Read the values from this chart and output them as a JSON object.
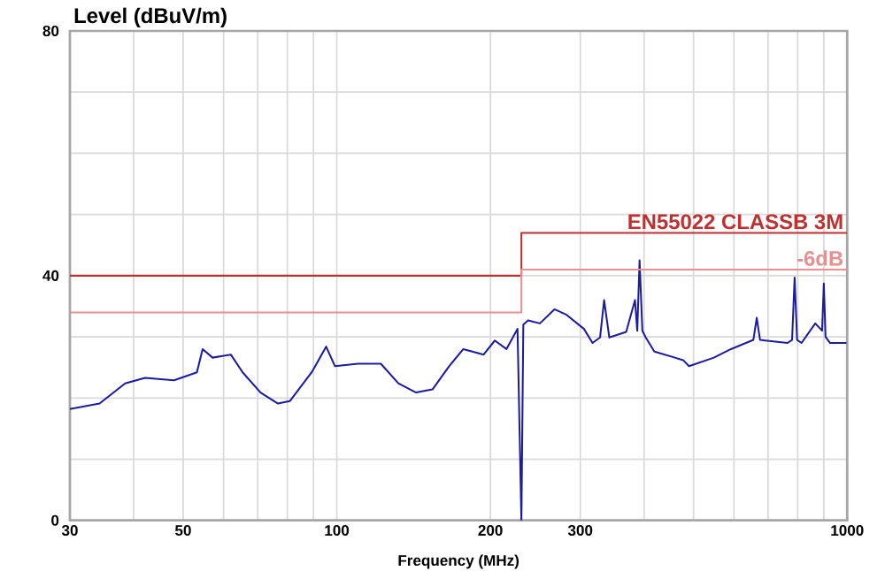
{
  "chart_data": {
    "type": "line",
    "xlabel": "Frequency (MHz)",
    "ylabel": "Level (dBuV/m)",
    "log": "x",
    "grid": true,
    "xlim": [
      30,
      1000
    ],
    "ylim": [
      0,
      80
    ],
    "xticks": [
      30,
      {
        "value": 40,
        "label": null
      },
      50,
      {
        "value": 60,
        "label": null
      },
      {
        "value": 70,
        "label": null
      },
      {
        "value": 80,
        "label": null
      },
      {
        "value": 90,
        "label": null
      },
      100,
      200,
      300,
      {
        "value": 400,
        "label": null
      },
      {
        "value": 500,
        "label": null
      },
      {
        "value": 600,
        "label": null
      },
      {
        "value": 700,
        "label": null
      },
      {
        "value": 800,
        "label": null
      },
      {
        "value": 900,
        "label": null
      },
      1000
    ],
    "yticks": [
      0,
      {
        "value": 10,
        "label": null
      },
      {
        "value": 20,
        "label": null
      },
      {
        "value": 30,
        "label": null
      },
      40,
      {
        "value": 50,
        "label": null
      },
      {
        "value": 60,
        "label": null
      },
      {
        "value": 70,
        "label": null
      },
      80
    ],
    "series": [
      {
        "color": "#1c1ca0",
        "x": [
          30,
          34.3,
          38.5,
          42.1,
          48,
          53.2,
          54.6,
          57.1,
          62,
          65.4,
          70.9,
          76.7,
          80.9,
          89.3,
          95.3,
          99.2,
          110,
          122,
          132,
          143,
          154,
          166,
          177,
          194,
          204,
          215,
          226,
          230,
          232,
          237,
          250,
          267,
          282,
          305,
          317,
          328,
          334,
          342,
          369,
          384,
          388,
          392,
          397,
          403,
          419,
          477,
          490,
          548,
          592,
          655,
          665,
          675,
          691,
          764,
          780,
          789,
          798,
          814,
          866,
          893,
          900,
          907,
          926,
          997
        ],
        "values": [
          18.2,
          19.1,
          22.4,
          23.3,
          22.9,
          24.2,
          28,
          26.6,
          27.1,
          24.2,
          20.9,
          19.1,
          19.5,
          24.2,
          28.4,
          25.2,
          25.6,
          25.6,
          22.4,
          20.9,
          21.4,
          25.2,
          28,
          27.1,
          29.4,
          28,
          31.3,
          0,
          32,
          32.7,
          32.2,
          34.5,
          33.6,
          31.3,
          29,
          29.9,
          36,
          29.9,
          30.8,
          36,
          31,
          42.5,
          31,
          29.9,
          27.6,
          26.2,
          25.2,
          26.6,
          28,
          29.5,
          33.1,
          29.5,
          29.4,
          29,
          29.5,
          39.7,
          29.5,
          29,
          32.2,
          31,
          38.7,
          30,
          29,
          29
        ]
      },
      {
        "name": "EN55022 CLASSB 3M",
        "color": "#c03030",
        "x": [
          30,
          230,
          230,
          1000
        ],
        "values": [
          40,
          40,
          47,
          47
        ]
      },
      {
        "name": "-6dB",
        "color": "#e89090",
        "x": [
          30,
          230,
          230,
          1000
        ],
        "values": [
          34,
          34,
          41,
          41
        ]
      }
    ]
  }
}
